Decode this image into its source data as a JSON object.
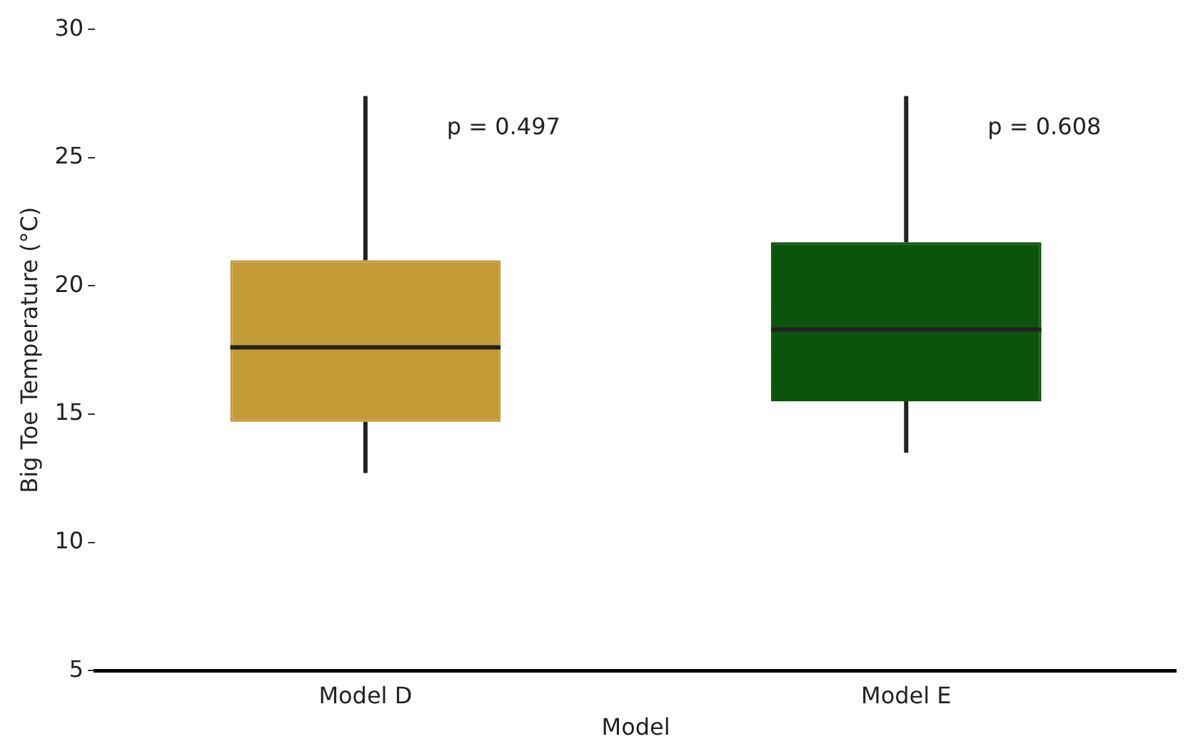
{
  "chart_data": {
    "type": "box",
    "xlabel": "Model",
    "ylabel": "Big Toe Temperature (°C)",
    "categories": [
      "Model D",
      "Model E"
    ],
    "series": [
      {
        "color": "#c49a36",
        "boxes": [
          {
            "low": 12.7,
            "q1": 14.7,
            "median": 17.6,
            "q3": 21.0,
            "high": 27.4
          },
          null
        ]
      },
      {
        "color": "#0b540b",
        "boxes": [
          null,
          {
            "low": 13.5,
            "q1": 15.5,
            "median": 18.3,
            "q3": 21.7,
            "high": 27.4
          }
        ]
      }
    ],
    "ylim": [
      5,
      30
    ],
    "yticks": [
      5,
      10,
      15,
      20,
      25,
      30
    ],
    "grid": false,
    "legend": false,
    "annotations": [
      "p = 0.497",
      "p = 0.608"
    ]
  }
}
